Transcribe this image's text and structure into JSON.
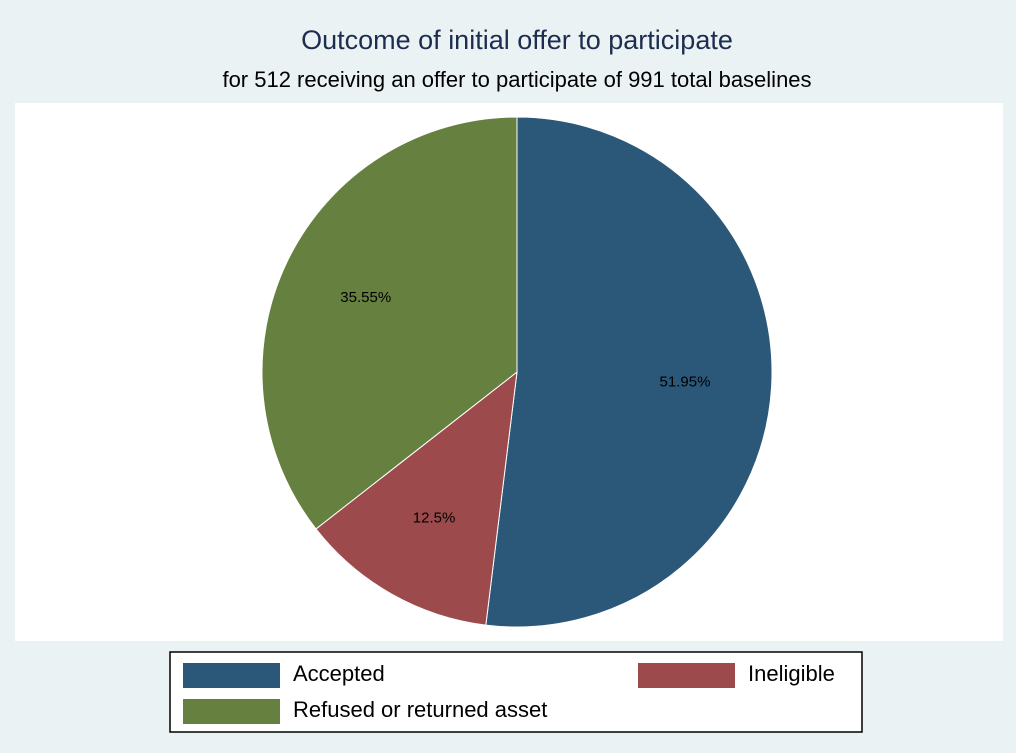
{
  "chart_data": {
    "type": "pie",
    "title": "Outcome of initial offer to participate",
    "subtitle": "for 512 receiving an offer to participate of 991 total baselines",
    "categories": [
      "Accepted",
      "Ineligible",
      "Refused or returned asset"
    ],
    "values": [
      51.95,
      12.5,
      35.55
    ],
    "value_labels": [
      "51.95%",
      "12.5%",
      "35.55%"
    ],
    "colors": [
      "#2b5779",
      "#9c4a4b",
      "#66803f"
    ]
  }
}
